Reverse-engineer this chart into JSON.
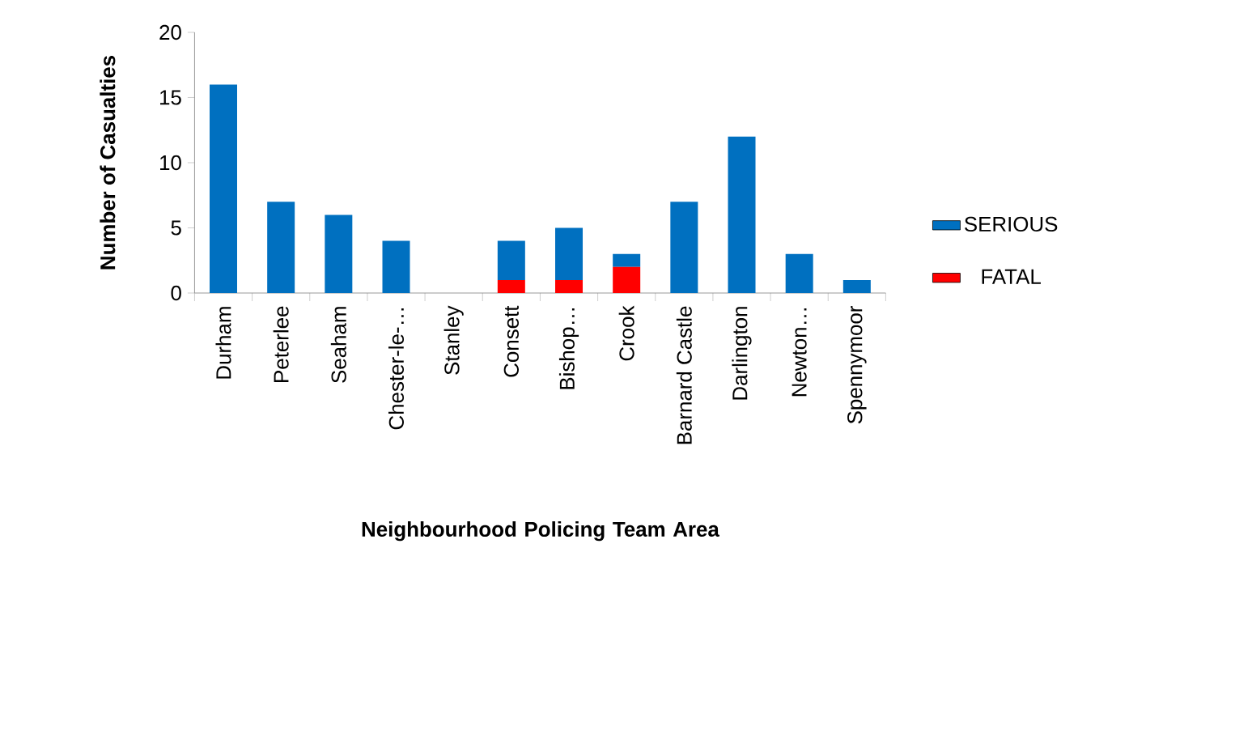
{
  "chart_data": {
    "type": "bar",
    "stacked": true,
    "xlabel": "Neighbourhood Policing Team Area",
    "ylabel": "Number of Casualties",
    "categories": [
      "Durham",
      "Peterlee",
      "Seaham",
      "Chester-le-…",
      "Stanley",
      "Consett",
      "Bishop…",
      "Crook",
      "Barnard Castle",
      "Darlington",
      "Newton…",
      "Spennymoor"
    ],
    "series": [
      {
        "name": "FATAL",
        "color": "#ff0000",
        "values": [
          0,
          0,
          0,
          0,
          0,
          1,
          1,
          2,
          0,
          0,
          0,
          0
        ]
      },
      {
        "name": "SERIOUS",
        "color": "#0070c0",
        "values": [
          16,
          7,
          6,
          4,
          0,
          3,
          4,
          1,
          7,
          12,
          3,
          1
        ]
      }
    ],
    "ylim": [
      0,
      20
    ],
    "yticks": [
      0,
      5,
      10,
      15,
      20
    ],
    "grid": false,
    "legend": "right"
  }
}
